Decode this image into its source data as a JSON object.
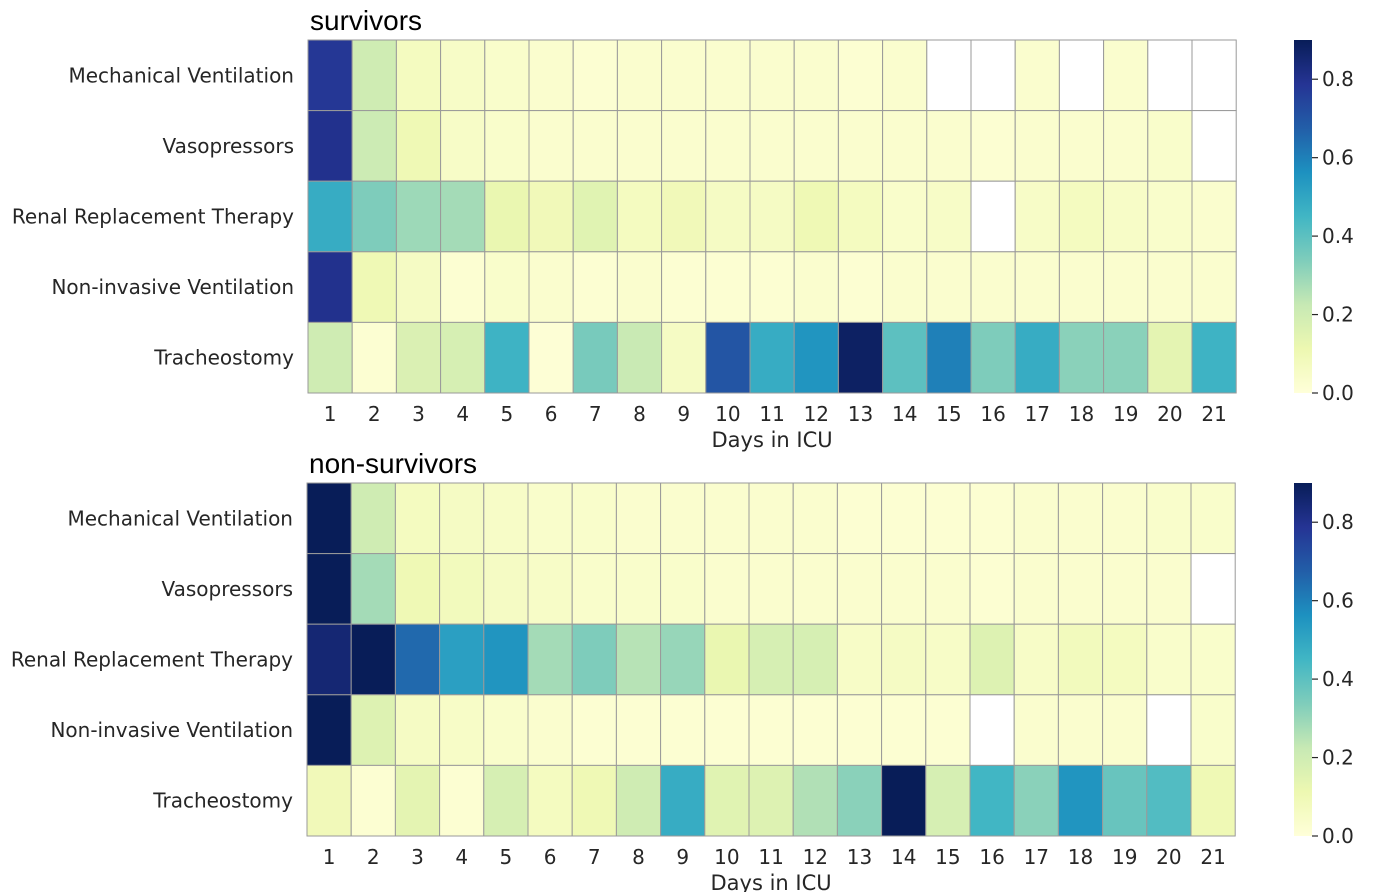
{
  "chart_data": [
    {
      "type": "heatmap",
      "title": "survivors",
      "xlabel": "Days in ICU",
      "ylabel": "",
      "x": [
        "1",
        "2",
        "3",
        "4",
        "5",
        "6",
        "7",
        "8",
        "9",
        "10",
        "11",
        "12",
        "13",
        "14",
        "15",
        "16",
        "17",
        "18",
        "19",
        "20",
        "21"
      ],
      "y": [
        "Mechanical Ventilation",
        "Vasopressors",
        "Renal Replacement Therapy",
        "Non-invasive Ventilation",
        "Tracheostomy"
      ],
      "values": [
        [
          0.78,
          0.2,
          0.07,
          0.05,
          0.04,
          0.03,
          0.02,
          0.03,
          0.03,
          0.03,
          0.03,
          0.03,
          0.02,
          0.03,
          null,
          null,
          0.03,
          null,
          0.03,
          null,
          null
        ],
        [
          0.8,
          0.21,
          0.1,
          0.05,
          0.04,
          0.03,
          0.03,
          0.03,
          0.03,
          0.03,
          0.03,
          0.03,
          0.03,
          0.03,
          0.03,
          0.02,
          0.03,
          0.03,
          0.03,
          0.04,
          null
        ],
        [
          0.48,
          0.34,
          0.29,
          0.28,
          0.12,
          0.09,
          0.15,
          0.07,
          0.09,
          0.06,
          0.06,
          0.1,
          0.07,
          0.04,
          0.05,
          null,
          0.05,
          0.07,
          0.05,
          0.04,
          0.03
        ],
        [
          0.8,
          0.1,
          0.06,
          0.02,
          0.04,
          0.03,
          0.02,
          0.03,
          0.02,
          0.02,
          0.02,
          0.03,
          0.02,
          0.03,
          0.03,
          0.03,
          0.03,
          0.03,
          0.03,
          0.03,
          0.03
        ],
        [
          0.2,
          0.02,
          0.17,
          0.18,
          0.46,
          0.01,
          0.35,
          0.22,
          0.06,
          0.7,
          0.48,
          0.55,
          0.88,
          0.4,
          0.6,
          0.34,
          0.48,
          0.32,
          0.32,
          0.14,
          0.46
        ]
      ],
      "colorbar": {
        "min": 0.0,
        "max": 0.9,
        "ticks": [
          "0.0",
          "0.2",
          "0.4",
          "0.6",
          "0.8"
        ]
      },
      "grid": true
    },
    {
      "type": "heatmap",
      "title": "non-survivors",
      "xlabel": "Days in ICU",
      "ylabel": "",
      "x": [
        "1",
        "2",
        "3",
        "4",
        "5",
        "6",
        "7",
        "8",
        "9",
        "10",
        "11",
        "12",
        "13",
        "14",
        "15",
        "16",
        "17",
        "18",
        "19",
        "20",
        "21"
      ],
      "y": [
        "Mechanical Ventilation",
        "Vasopressors",
        "Renal Replacement Therapy",
        "Non-invasive Ventilation",
        "Tracheostomy"
      ],
      "values": [
        [
          0.9,
          0.2,
          0.07,
          0.06,
          0.05,
          0.04,
          0.04,
          0.03,
          0.03,
          0.03,
          0.03,
          0.03,
          0.02,
          0.02,
          0.02,
          0.02,
          0.03,
          0.03,
          0.03,
          0.04,
          0.04
        ],
        [
          0.9,
          0.28,
          0.1,
          0.08,
          0.06,
          0.05,
          0.04,
          0.04,
          0.04,
          0.03,
          0.03,
          0.03,
          0.03,
          0.03,
          0.03,
          0.02,
          0.03,
          0.03,
          0.03,
          0.03,
          null
        ],
        [
          0.85,
          0.92,
          0.65,
          0.52,
          0.55,
          0.28,
          0.34,
          0.25,
          0.3,
          0.12,
          0.18,
          0.18,
          0.05,
          0.06,
          0.05,
          0.16,
          0.05,
          0.08,
          0.07,
          0.04,
          0.04
        ],
        [
          0.9,
          0.16,
          0.06,
          0.05,
          0.04,
          0.03,
          0.02,
          0.02,
          0.02,
          0.02,
          0.02,
          0.02,
          0.02,
          0.02,
          0.02,
          null,
          0.03,
          0.03,
          0.03,
          null,
          0.04
        ],
        [
          0.09,
          0.02,
          0.14,
          0.02,
          0.18,
          0.07,
          0.1,
          0.2,
          0.48,
          0.15,
          0.16,
          0.26,
          0.32,
          0.95,
          0.18,
          0.45,
          0.32,
          0.55,
          0.38,
          0.42,
          0.1
        ]
      ],
      "colorbar": {
        "min": 0.0,
        "max": 0.9,
        "ticks": [
          "0.0",
          "0.2",
          "0.4",
          "0.6",
          "0.8"
        ]
      },
      "grid": true
    }
  ]
}
